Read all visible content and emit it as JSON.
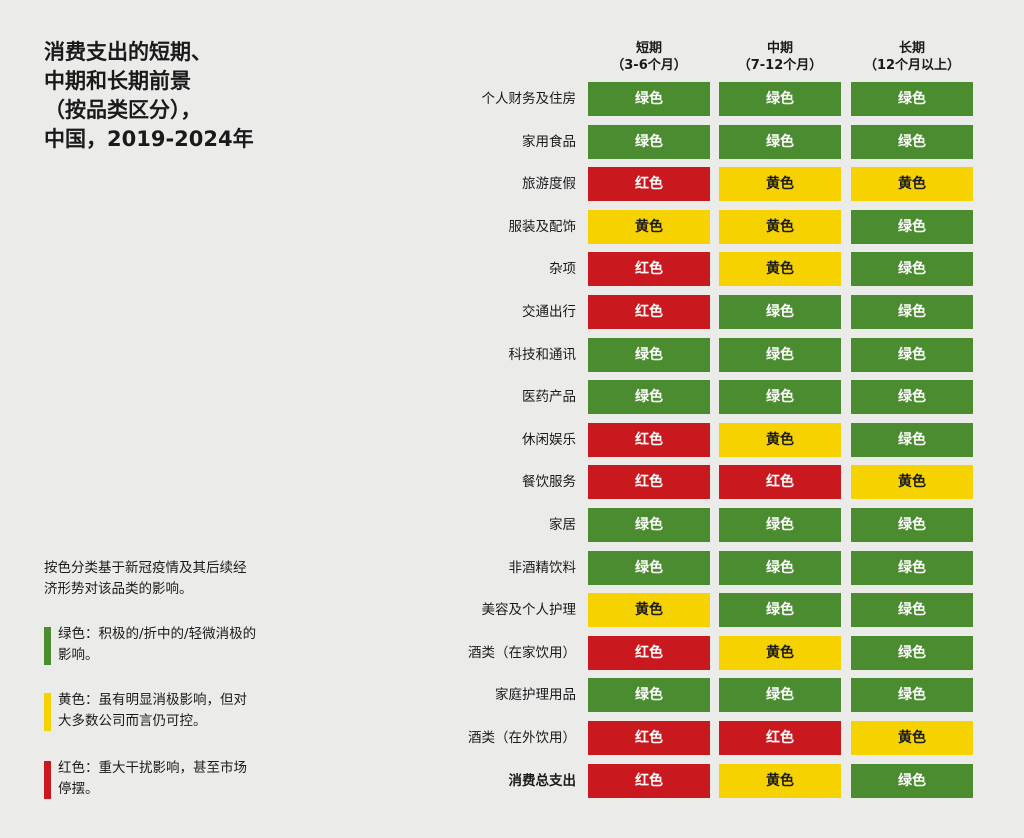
{
  "title_lines": [
    "消费支出的短期、",
    "中期和长期前景",
    "（按品类区分），",
    "中国，2019-2024年"
  ],
  "note": "按色分类基于新冠疫情及其后续经济形势对该品类的影响。",
  "legend": [
    {
      "key": "green",
      "color": "#4a8c2f",
      "text": "绿色：积极的/折中的/轻微消极的影响。"
    },
    {
      "key": "yellow",
      "color": "#f5d200",
      "text": "黄色：虽有明显消极影响，但对大多数公司而言仍可控。"
    },
    {
      "key": "red",
      "color": "#c9191f",
      "text": "红色：重大干扰影响，甚至市场停摆。"
    }
  ],
  "chart_data": {
    "type": "table",
    "columns": [
      {
        "name": "短期",
        "sub": "（3-6个月）"
      },
      {
        "name": "中期",
        "sub": "（7-12个月）"
      },
      {
        "name": "长期",
        "sub": "（12个月以上）"
      }
    ],
    "rows": [
      {
        "label": "个人财务及住房",
        "values": [
          "green",
          "green",
          "green"
        ]
      },
      {
        "label": "家用食品",
        "values": [
          "green",
          "green",
          "green"
        ]
      },
      {
        "label": "旅游度假",
        "values": [
          "red",
          "yellow",
          "yellow"
        ]
      },
      {
        "label": "服装及配饰",
        "values": [
          "yellow",
          "yellow",
          "green"
        ]
      },
      {
        "label": "杂项",
        "values": [
          "red",
          "yellow",
          "green"
        ]
      },
      {
        "label": "交通出行",
        "values": [
          "red",
          "green",
          "green"
        ]
      },
      {
        "label": "科技和通讯",
        "values": [
          "green",
          "green",
          "green"
        ]
      },
      {
        "label": "医药产品",
        "values": [
          "green",
          "green",
          "green"
        ]
      },
      {
        "label": "休闲娱乐",
        "values": [
          "red",
          "yellow",
          "green"
        ]
      },
      {
        "label": "餐饮服务",
        "values": [
          "red",
          "red",
          "yellow"
        ]
      },
      {
        "label": "家居",
        "values": [
          "green",
          "green",
          "green"
        ]
      },
      {
        "label": "非酒精饮料",
        "values": [
          "green",
          "green",
          "green"
        ]
      },
      {
        "label": "美容及个人护理",
        "values": [
          "yellow",
          "green",
          "green"
        ]
      },
      {
        "label": "酒类（在家饮用）",
        "values": [
          "red",
          "yellow",
          "green"
        ]
      },
      {
        "label": "家庭护理用品",
        "values": [
          "green",
          "green",
          "green"
        ]
      },
      {
        "label": "酒类（在外饮用）",
        "values": [
          "red",
          "red",
          "yellow"
        ]
      },
      {
        "label": "消费总支出",
        "values": [
          "red",
          "yellow",
          "green"
        ],
        "total": true
      }
    ],
    "value_labels": {
      "green": "绿色",
      "yellow": "黄色",
      "red": "红色"
    },
    "colors": {
      "green": "#4a8c2f",
      "yellow": "#f5d200",
      "red": "#c9191f"
    }
  }
}
